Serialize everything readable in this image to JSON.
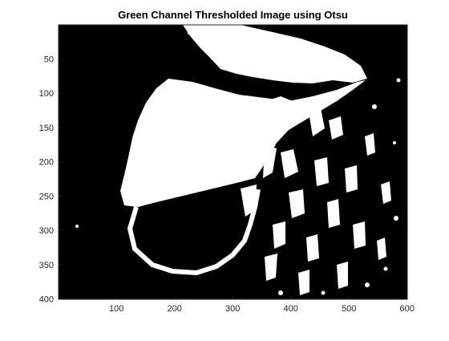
{
  "figure": {
    "title": "Green Channel Thresholded Image using Otsu",
    "x_ticks": [
      "100",
      "200",
      "300",
      "400",
      "500",
      "600"
    ],
    "y_ticks": [
      "50",
      "100",
      "150",
      "200",
      "250",
      "300",
      "350",
      "400"
    ],
    "x_range": [
      0.5,
      600.5
    ],
    "y_range": [
      0.5,
      400.5
    ],
    "colors": {
      "foreground": "#ffffff",
      "background": "#000000",
      "axis": "#262626"
    },
    "image_type": "binary-thresholded"
  }
}
